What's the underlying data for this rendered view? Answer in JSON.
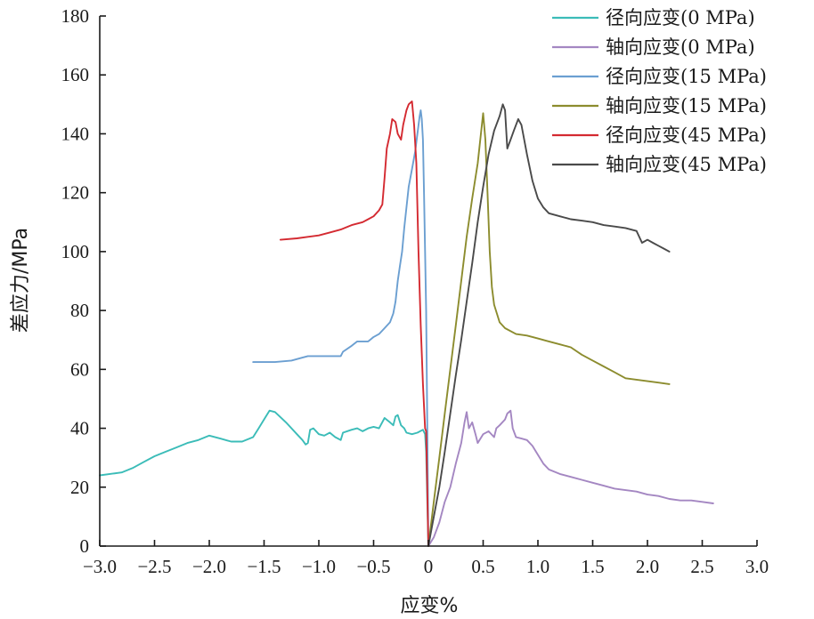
{
  "chart_data": {
    "type": "line",
    "xlabel": "应变%",
    "ylabel": "差应力/MPa",
    "xlim": [
      -3.0,
      3.0
    ],
    "ylim": [
      0,
      180
    ],
    "xticks": [
      -3.0,
      -2.5,
      -2.0,
      -1.5,
      -1.0,
      -0.5,
      0,
      0.5,
      1.0,
      1.5,
      2.0,
      2.5,
      3.0
    ],
    "xtick_labels": [
      "−3.0",
      "−2.5",
      "−2.0",
      "−1.5",
      "−1.0",
      "−0.5",
      "0",
      "0.5",
      "1.0",
      "1.5",
      "2.0",
      "2.5",
      "3.0"
    ],
    "yticks": [
      0,
      20,
      40,
      60,
      80,
      100,
      120,
      140,
      160,
      180
    ],
    "ytick_labels": [
      "0",
      "20",
      "40",
      "60",
      "80",
      "100",
      "120",
      "140",
      "160",
      "180"
    ],
    "grid": false,
    "legend_position": "top-right",
    "series": [
      {
        "name": "径向应变(0 MPa)",
        "color": "#3bbcb8",
        "points": [
          [
            -3.0,
            24
          ],
          [
            -2.8,
            25
          ],
          [
            -2.7,
            26.5
          ],
          [
            -2.6,
            28.5
          ],
          [
            -2.5,
            30.5
          ],
          [
            -2.4,
            32
          ],
          [
            -2.3,
            33.5
          ],
          [
            -2.2,
            35
          ],
          [
            -2.1,
            36
          ],
          [
            -2.0,
            37.5
          ],
          [
            -1.9,
            36.5
          ],
          [
            -1.8,
            35.5
          ],
          [
            -1.7,
            35.5
          ],
          [
            -1.6,
            37
          ],
          [
            -1.55,
            40
          ],
          [
            -1.5,
            43
          ],
          [
            -1.45,
            46
          ],
          [
            -1.4,
            45.5
          ],
          [
            -1.3,
            42
          ],
          [
            -1.2,
            38
          ],
          [
            -1.15,
            36
          ],
          [
            -1.12,
            34.5
          ],
          [
            -1.1,
            35
          ],
          [
            -1.08,
            39.5
          ],
          [
            -1.05,
            40
          ],
          [
            -1.0,
            38
          ],
          [
            -0.95,
            37.5
          ],
          [
            -0.9,
            38.5
          ],
          [
            -0.85,
            37
          ],
          [
            -0.8,
            36
          ],
          [
            -0.78,
            38.5
          ],
          [
            -0.7,
            39.5
          ],
          [
            -0.65,
            40
          ],
          [
            -0.6,
            39
          ],
          [
            -0.55,
            40
          ],
          [
            -0.5,
            40.5
          ],
          [
            -0.45,
            40
          ],
          [
            -0.4,
            43.5
          ],
          [
            -0.35,
            42
          ],
          [
            -0.32,
            41
          ],
          [
            -0.3,
            44
          ],
          [
            -0.28,
            44.5
          ],
          [
            -0.25,
            41
          ],
          [
            -0.22,
            40
          ],
          [
            -0.2,
            38.5
          ],
          [
            -0.15,
            38
          ],
          [
            -0.1,
            38.5
          ],
          [
            -0.05,
            39.5
          ],
          [
            -0.03,
            38
          ],
          [
            -0.02,
            32
          ],
          [
            0,
            0
          ]
        ]
      },
      {
        "name": "轴向应变(0 MPa)",
        "color": "#a487c2",
        "points": [
          [
            0,
            0
          ],
          [
            0.05,
            3
          ],
          [
            0.1,
            8
          ],
          [
            0.15,
            15
          ],
          [
            0.2,
            20
          ],
          [
            0.25,
            28
          ],
          [
            0.3,
            35
          ],
          [
            0.33,
            42
          ],
          [
            0.35,
            45.5
          ],
          [
            0.37,
            40
          ],
          [
            0.4,
            42
          ],
          [
            0.43,
            38
          ],
          [
            0.45,
            35
          ],
          [
            0.5,
            38
          ],
          [
            0.55,
            39
          ],
          [
            0.6,
            37
          ],
          [
            0.62,
            40
          ],
          [
            0.65,
            41
          ],
          [
            0.7,
            43
          ],
          [
            0.72,
            45
          ],
          [
            0.75,
            46
          ],
          [
            0.77,
            40
          ],
          [
            0.8,
            37
          ],
          [
            0.85,
            36.5
          ],
          [
            0.9,
            36
          ],
          [
            0.95,
            34
          ],
          [
            1.0,
            31
          ],
          [
            1.05,
            28
          ],
          [
            1.1,
            26
          ],
          [
            1.2,
            24.5
          ],
          [
            1.3,
            23.5
          ],
          [
            1.4,
            22.5
          ],
          [
            1.5,
            21.5
          ],
          [
            1.6,
            20.5
          ],
          [
            1.7,
            19.5
          ],
          [
            1.8,
            19
          ],
          [
            1.9,
            18.5
          ],
          [
            2.0,
            17.5
          ],
          [
            2.1,
            17
          ],
          [
            2.2,
            16
          ],
          [
            2.3,
            15.5
          ],
          [
            2.4,
            15.5
          ],
          [
            2.5,
            15
          ],
          [
            2.6,
            14.5
          ]
        ]
      },
      {
        "name": "径向应变(15 MPa)",
        "color": "#6b9fd1",
        "points": [
          [
            -1.6,
            62.5
          ],
          [
            -1.4,
            62.5
          ],
          [
            -1.25,
            63
          ],
          [
            -1.15,
            64
          ],
          [
            -1.1,
            64.5
          ],
          [
            -1.0,
            64.5
          ],
          [
            -0.9,
            64.5
          ],
          [
            -0.8,
            64.5
          ],
          [
            -0.78,
            66
          ],
          [
            -0.7,
            68
          ],
          [
            -0.65,
            69.5
          ],
          [
            -0.55,
            69.5
          ],
          [
            -0.5,
            71
          ],
          [
            -0.45,
            72
          ],
          [
            -0.4,
            74
          ],
          [
            -0.35,
            76
          ],
          [
            -0.32,
            79
          ],
          [
            -0.3,
            83
          ],
          [
            -0.28,
            90
          ],
          [
            -0.26,
            95
          ],
          [
            -0.24,
            100
          ],
          [
            -0.22,
            108
          ],
          [
            -0.2,
            115
          ],
          [
            -0.18,
            122
          ],
          [
            -0.15,
            128
          ],
          [
            -0.12,
            134
          ],
          [
            -0.1,
            140
          ],
          [
            -0.08,
            146
          ],
          [
            -0.07,
            148
          ],
          [
            -0.06,
            145
          ],
          [
            -0.05,
            138
          ],
          [
            -0.04,
            120
          ],
          [
            -0.03,
            100
          ],
          [
            -0.02,
            80
          ],
          [
            -0.01,
            40
          ],
          [
            0,
            0
          ]
        ]
      },
      {
        "name": "轴向应变(15 MPa)",
        "color": "#8c8c2e",
        "points": [
          [
            0,
            0
          ],
          [
            0.05,
            15
          ],
          [
            0.1,
            30
          ],
          [
            0.15,
            45
          ],
          [
            0.2,
            60
          ],
          [
            0.25,
            75
          ],
          [
            0.3,
            90
          ],
          [
            0.35,
            105
          ],
          [
            0.4,
            118
          ],
          [
            0.45,
            130
          ],
          [
            0.48,
            140
          ],
          [
            0.5,
            147
          ],
          [
            0.52,
            138
          ],
          [
            0.54,
            120
          ],
          [
            0.56,
            100
          ],
          [
            0.58,
            88
          ],
          [
            0.6,
            82
          ],
          [
            0.65,
            76
          ],
          [
            0.7,
            74
          ],
          [
            0.8,
            72
          ],
          [
            0.9,
            71.5
          ],
          [
            1.0,
            70.5
          ],
          [
            1.1,
            69.5
          ],
          [
            1.2,
            68.5
          ],
          [
            1.3,
            67.5
          ],
          [
            1.4,
            65
          ],
          [
            1.5,
            63
          ],
          [
            1.6,
            61
          ],
          [
            1.7,
            59
          ],
          [
            1.8,
            57
          ],
          [
            1.9,
            56.5
          ],
          [
            2.0,
            56
          ],
          [
            2.1,
            55.5
          ],
          [
            2.2,
            55
          ]
        ]
      },
      {
        "name": "径向应变(45 MPa)",
        "color": "#d42a31",
        "points": [
          [
            -1.35,
            104
          ],
          [
            -1.2,
            104.5
          ],
          [
            -1.1,
            105
          ],
          [
            -1.0,
            105.5
          ],
          [
            -0.9,
            106.5
          ],
          [
            -0.8,
            107.5
          ],
          [
            -0.7,
            109
          ],
          [
            -0.6,
            110
          ],
          [
            -0.55,
            111
          ],
          [
            -0.5,
            112
          ],
          [
            -0.45,
            114
          ],
          [
            -0.42,
            116
          ],
          [
            -0.4,
            125
          ],
          [
            -0.38,
            135
          ],
          [
            -0.35,
            140
          ],
          [
            -0.33,
            145
          ],
          [
            -0.3,
            144
          ],
          [
            -0.28,
            140
          ],
          [
            -0.25,
            138
          ],
          [
            -0.23,
            143
          ],
          [
            -0.2,
            148
          ],
          [
            -0.18,
            150
          ],
          [
            -0.15,
            151
          ],
          [
            -0.13,
            143
          ],
          [
            -0.11,
            130
          ],
          [
            -0.09,
            100
          ],
          [
            -0.07,
            75
          ],
          [
            -0.05,
            55
          ],
          [
            -0.03,
            40
          ],
          [
            -0.02,
            39
          ],
          [
            0,
            0
          ]
        ]
      },
      {
        "name": "轴向应变(45 MPa)",
        "color": "#4a4a4a",
        "points": [
          [
            0,
            0
          ],
          [
            0.05,
            10
          ],
          [
            0.1,
            20
          ],
          [
            0.15,
            32
          ],
          [
            0.2,
            45
          ],
          [
            0.25,
            58
          ],
          [
            0.3,
            70
          ],
          [
            0.35,
            83
          ],
          [
            0.4,
            96
          ],
          [
            0.45,
            110
          ],
          [
            0.5,
            122
          ],
          [
            0.55,
            133
          ],
          [
            0.6,
            141
          ],
          [
            0.65,
            146
          ],
          [
            0.68,
            150
          ],
          [
            0.7,
            148
          ],
          [
            0.72,
            135
          ],
          [
            0.75,
            138
          ],
          [
            0.78,
            141
          ],
          [
            0.82,
            145
          ],
          [
            0.85,
            143
          ],
          [
            0.9,
            133
          ],
          [
            0.95,
            124
          ],
          [
            1.0,
            118
          ],
          [
            1.05,
            115
          ],
          [
            1.1,
            113
          ],
          [
            1.2,
            112
          ],
          [
            1.3,
            111
          ],
          [
            1.4,
            110.5
          ],
          [
            1.5,
            110
          ],
          [
            1.6,
            109
          ],
          [
            1.7,
            108.5
          ],
          [
            1.8,
            108
          ],
          [
            1.9,
            107
          ],
          [
            1.95,
            103
          ],
          [
            2.0,
            104
          ],
          [
            2.05,
            103
          ],
          [
            2.1,
            102
          ],
          [
            2.15,
            101
          ],
          [
            2.2,
            100
          ]
        ]
      }
    ]
  }
}
